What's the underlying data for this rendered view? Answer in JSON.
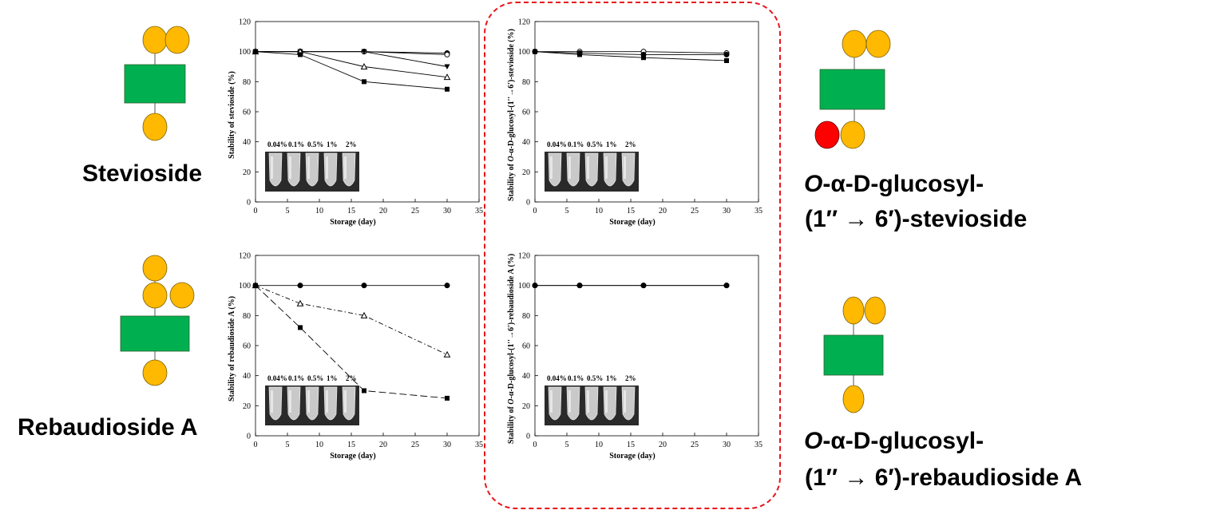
{
  "compounds": {
    "stevioside": "Stevioside",
    "rebaudioside_a": "Rebaudioside A",
    "glc_stevioside_line1": "-α-D-glucosyl-",
    "glc_stevioside_prefix": "O",
    "glc_stevioside_line2": "(1′′ → 6′)-stevioside",
    "glc_rebA_prefix": "O",
    "glc_rebA_line1": "-α-D-glucosyl-",
    "glc_rebA_line2": "(1′′ → 6′)-rebaudioside A"
  },
  "colors": {
    "glucose": "#ffb900",
    "core": "#00b050",
    "added_glucose": "#ff0000",
    "frame": "#e8141b"
  },
  "tube_labels": [
    "0.04%",
    "0.1%",
    "0.5%",
    "1%",
    "2%"
  ],
  "chart_data": [
    {
      "type": "line",
      "ylabel": "Stability of stevioside (%)",
      "xlabel": "Storage (day)",
      "xlim": [
        0,
        35
      ],
      "ylim": [
        0,
        120
      ],
      "xticks": [
        0,
        5,
        10,
        15,
        20,
        25,
        30,
        35
      ],
      "yticks": [
        0,
        20,
        40,
        60,
        80,
        100,
        120
      ],
      "x": [
        0,
        7,
        17,
        30
      ],
      "series": [
        {
          "marker": "filled-circle",
          "values": [
            100,
            100,
            100,
            99
          ],
          "dash": "solid"
        },
        {
          "marker": "open-circle",
          "values": [
            100,
            100,
            100,
            98
          ],
          "dash": "solid"
        },
        {
          "marker": "filled-triangle-down",
          "values": [
            100,
            100,
            100,
            90
          ],
          "dash": "solid"
        },
        {
          "marker": "open-triangle",
          "values": [
            100,
            100,
            90,
            83
          ],
          "dash": "solid"
        },
        {
          "marker": "filled-square",
          "values": [
            100,
            98,
            80,
            75
          ],
          "dash": "solid"
        }
      ]
    },
    {
      "type": "line",
      "ylabel_prefix": "Stability of ",
      "ylabel_italic": "O",
      "ylabel_rest": "-α-D-glucosyl-(1′′→6′)-stevioside (%)",
      "xlabel": "Storage (day)",
      "xlim": [
        0,
        35
      ],
      "ylim": [
        0,
        120
      ],
      "xticks": [
        0,
        5,
        10,
        15,
        20,
        25,
        30,
        35
      ],
      "yticks": [
        0,
        20,
        40,
        60,
        80,
        100,
        120
      ],
      "x": [
        0,
        7,
        17,
        30
      ],
      "series": [
        {
          "marker": "open-circle",
          "values": [
            100,
            100,
            100,
            99
          ],
          "dash": "solid"
        },
        {
          "marker": "filled-circle",
          "values": [
            100,
            99,
            98,
            98
          ],
          "dash": "solid"
        },
        {
          "marker": "filled-square",
          "values": [
            100,
            98,
            96,
            94
          ],
          "dash": "solid"
        }
      ]
    },
    {
      "type": "line",
      "ylabel": "Stability of rebaudioside A (%)",
      "xlabel": "Storage (day)",
      "xlim": [
        0,
        35
      ],
      "ylim": [
        0,
        120
      ],
      "xticks": [
        0,
        5,
        10,
        15,
        20,
        25,
        30,
        35
      ],
      "yticks": [
        0,
        20,
        40,
        60,
        80,
        100,
        120
      ],
      "x": [
        0,
        7,
        17,
        30
      ],
      "series": [
        {
          "marker": "filled-circle",
          "values": [
            100,
            100,
            100,
            100
          ],
          "dash": "solid"
        },
        {
          "marker": "open-triangle",
          "values": [
            100,
            88,
            80,
            54
          ],
          "dash": "dashdot"
        },
        {
          "marker": "filled-square",
          "values": [
            100,
            72,
            30,
            25
          ],
          "dash": "longdash"
        }
      ]
    },
    {
      "type": "line",
      "ylabel_prefix": "Stability of ",
      "ylabel_italic": "O",
      "ylabel_rest": "-α-D-glucosyl-(1′′→6′)-rebaudioside A (%)",
      "xlabel": "Storage (day)",
      "xlim": [
        0,
        35
      ],
      "ylim": [
        0,
        120
      ],
      "xticks": [
        0,
        5,
        10,
        15,
        20,
        25,
        30,
        35
      ],
      "yticks": [
        0,
        20,
        40,
        60,
        80,
        100,
        120
      ],
      "x": [
        0,
        7,
        17,
        30
      ],
      "series": [
        {
          "marker": "open-circle",
          "values": [
            100,
            100,
            100,
            100
          ],
          "dash": "solid"
        },
        {
          "marker": "filled-circle",
          "values": [
            100,
            100,
            100,
            100
          ],
          "dash": "solid"
        }
      ]
    }
  ]
}
